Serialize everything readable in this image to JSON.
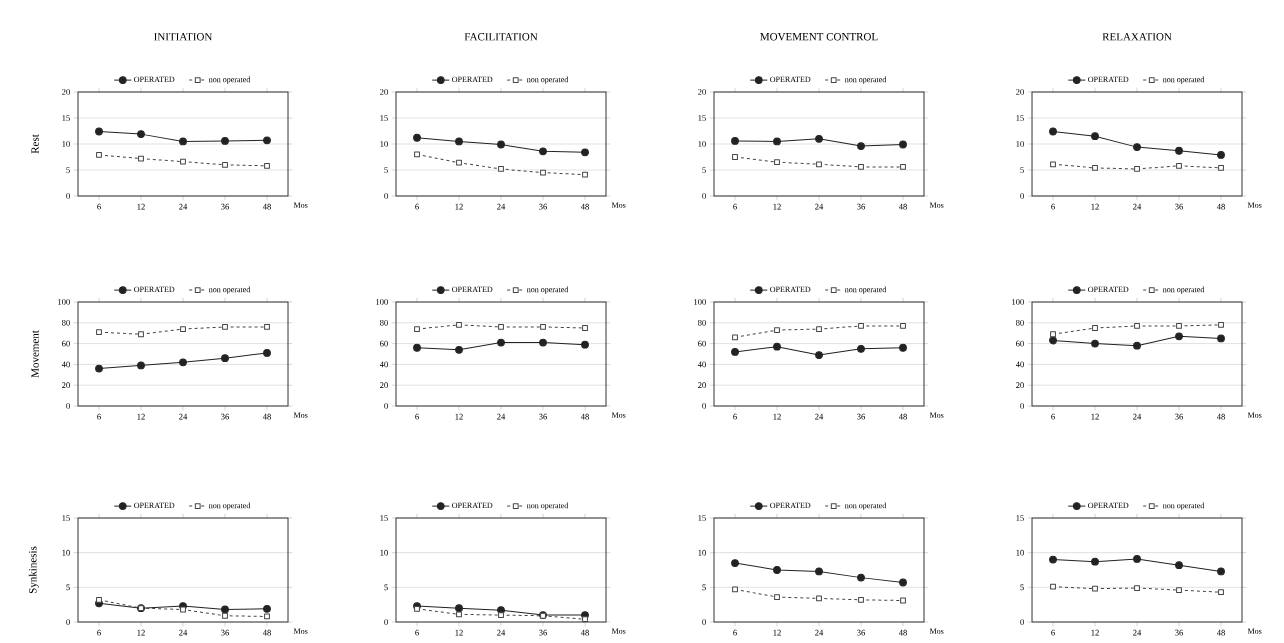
{
  "chart_data": [
    {
      "type": "line",
      "title": "INITIATION",
      "ylabel": "Rest",
      "xlabel": "Mos",
      "categories": [
        "6",
        "12",
        "24",
        "36",
        "48"
      ],
      "ylim": [
        0,
        20
      ],
      "yticks": [
        0,
        5,
        10,
        15,
        20
      ],
      "grid": "y",
      "legend": "top",
      "series": [
        {
          "name": "OPERATED",
          "color": "#222222",
          "marker": "circle",
          "line_style": "solid",
          "values": [
            12.4,
            11.9,
            10.5,
            10.6,
            10.7
          ]
        },
        {
          "name": "non operated",
          "color": "#444444",
          "marker": "square",
          "line_style": "dashed",
          "values": [
            7.9,
            7.2,
            6.6,
            6.0,
            5.8
          ]
        }
      ]
    },
    {
      "type": "line",
      "title": "FACILITATION",
      "xlabel": "Mos",
      "categories": [
        "6",
        "12",
        "24",
        "36",
        "48"
      ],
      "ylim": [
        0,
        20
      ],
      "yticks": [
        0,
        5,
        10,
        15,
        20
      ],
      "grid": "y",
      "legend": "top",
      "series": [
        {
          "name": "OPERATED",
          "color": "#222222",
          "marker": "circle",
          "line_style": "solid",
          "values": [
            11.2,
            10.5,
            9.9,
            8.6,
            8.4
          ]
        },
        {
          "name": "non operated",
          "color": "#444444",
          "marker": "square",
          "line_style": "dashed",
          "values": [
            8.0,
            6.4,
            5.2,
            4.5,
            4.1
          ]
        }
      ]
    },
    {
      "type": "line",
      "title": "MOVEMENT CONTROL",
      "xlabel": "Mos",
      "categories": [
        "6",
        "12",
        "24",
        "36",
        "48"
      ],
      "ylim": [
        0,
        20
      ],
      "yticks": [
        0,
        5,
        10,
        15,
        20
      ],
      "grid": "y",
      "legend": "top",
      "series": [
        {
          "name": "OPERATED",
          "color": "#222222",
          "marker": "circle",
          "line_style": "solid",
          "values": [
            10.6,
            10.5,
            11.0,
            9.6,
            9.9
          ]
        },
        {
          "name": "non operated",
          "color": "#444444",
          "marker": "square",
          "line_style": "dashed",
          "values": [
            7.5,
            6.5,
            6.1,
            5.6,
            5.6
          ]
        }
      ]
    },
    {
      "type": "line",
      "title": "RELAXATION",
      "xlabel": "Mos",
      "categories": [
        "6",
        "12",
        "24",
        "36",
        "48"
      ],
      "ylim": [
        0,
        20
      ],
      "yticks": [
        0,
        5,
        10,
        15,
        20
      ],
      "grid": "y",
      "legend": "top",
      "series": [
        {
          "name": "OPERATED",
          "color": "#222222",
          "marker": "circle",
          "line_style": "solid",
          "values": [
            12.4,
            11.5,
            9.4,
            8.7,
            7.9
          ]
        },
        {
          "name": "non operated",
          "color": "#444444",
          "marker": "square",
          "line_style": "dashed",
          "values": [
            6.1,
            5.4,
            5.2,
            5.8,
            5.4
          ]
        }
      ]
    },
    {
      "type": "line",
      "ylabel": "Movement",
      "xlabel": "Mos",
      "categories": [
        "6",
        "12",
        "24",
        "36",
        "48"
      ],
      "ylim": [
        0,
        100
      ],
      "yticks": [
        0,
        20,
        40,
        60,
        80,
        100
      ],
      "grid": "y",
      "legend": "top",
      "series": [
        {
          "name": "OPERATED",
          "color": "#222222",
          "marker": "circle",
          "line_style": "solid",
          "values": [
            36,
            39,
            42,
            46,
            51
          ]
        },
        {
          "name": "non operated",
          "color": "#444444",
          "marker": "square",
          "line_style": "dashed",
          "values": [
            71,
            69,
            74,
            76,
            76
          ]
        }
      ]
    },
    {
      "type": "line",
      "xlabel": "Mos",
      "categories": [
        "6",
        "12",
        "24",
        "36",
        "48"
      ],
      "ylim": [
        0,
        100
      ],
      "yticks": [
        0,
        20,
        40,
        60,
        80,
        100
      ],
      "grid": "y",
      "legend": "top",
      "series": [
        {
          "name": "OPERATED",
          "color": "#222222",
          "marker": "circle",
          "line_style": "solid",
          "values": [
            56,
            54,
            61,
            61,
            59
          ]
        },
        {
          "name": "non operated",
          "color": "#444444",
          "marker": "square",
          "line_style": "dashed",
          "values": [
            74,
            78,
            76,
            76,
            75
          ]
        }
      ]
    },
    {
      "type": "line",
      "xlabel": "Mos",
      "categories": [
        "6",
        "12",
        "24",
        "36",
        "48"
      ],
      "ylim": [
        0,
        100
      ],
      "yticks": [
        0,
        20,
        40,
        60,
        80,
        100
      ],
      "grid": "y",
      "legend": "top",
      "series": [
        {
          "name": "OPERATED",
          "color": "#222222",
          "marker": "circle",
          "line_style": "solid",
          "values": [
            52,
            57,
            49,
            55,
            56
          ]
        },
        {
          "name": "non operated",
          "color": "#444444",
          "marker": "square",
          "line_style": "dashed",
          "values": [
            66,
            73,
            74,
            77,
            77
          ]
        }
      ]
    },
    {
      "type": "line",
      "xlabel": "Mos",
      "categories": [
        "6",
        "12",
        "24",
        "36",
        "48"
      ],
      "ylim": [
        0,
        100
      ],
      "yticks": [
        0,
        20,
        40,
        60,
        80,
        100
      ],
      "grid": "y",
      "legend": "top",
      "series": [
        {
          "name": "OPERATED",
          "color": "#222222",
          "marker": "circle",
          "line_style": "solid",
          "values": [
            63,
            60,
            58,
            67,
            65
          ]
        },
        {
          "name": "non operated",
          "color": "#444444",
          "marker": "square",
          "line_style": "dashed",
          "values": [
            69,
            75,
            77,
            77,
            78
          ]
        }
      ]
    },
    {
      "type": "line",
      "ylabel": "Synkinesis",
      "xlabel": "Mos",
      "categories": [
        "6",
        "12",
        "24",
        "36",
        "48"
      ],
      "ylim": [
        0,
        15
      ],
      "yticks": [
        0,
        5,
        10,
        15
      ],
      "grid": "y",
      "legend": "top",
      "series": [
        {
          "name": "OPERATED",
          "color": "#222222",
          "marker": "circle",
          "line_style": "solid",
          "values": [
            2.7,
            2.0,
            2.3,
            1.8,
            1.9
          ]
        },
        {
          "name": "non operated",
          "color": "#444444",
          "marker": "square",
          "line_style": "dashed",
          "values": [
            3.2,
            2.0,
            1.8,
            0.9,
            0.8
          ]
        }
      ]
    },
    {
      "type": "line",
      "xlabel": "Mos",
      "categories": [
        "6",
        "12",
        "24",
        "36",
        "48"
      ],
      "ylim": [
        0,
        15
      ],
      "yticks": [
        0,
        5,
        10,
        15
      ],
      "grid": "y",
      "legend": "top",
      "series": [
        {
          "name": "OPERATED",
          "color": "#222222",
          "marker": "circle",
          "line_style": "solid",
          "values": [
            2.3,
            2.0,
            1.7,
            1.0,
            1.0
          ]
        },
        {
          "name": "non operated",
          "color": "#444444",
          "marker": "square",
          "line_style": "dashed",
          "values": [
            1.9,
            1.1,
            1.0,
            0.9,
            0.4
          ]
        }
      ]
    },
    {
      "type": "line",
      "xlabel": "Mos",
      "categories": [
        "6",
        "12",
        "24",
        "36",
        "48"
      ],
      "ylim": [
        0,
        15
      ],
      "yticks": [
        0,
        5,
        10,
        15
      ],
      "grid": "y",
      "legend": "top",
      "series": [
        {
          "name": "OPERATED",
          "color": "#222222",
          "marker": "circle",
          "line_style": "solid",
          "values": [
            8.5,
            7.5,
            7.3,
            6.4,
            5.7
          ]
        },
        {
          "name": "non operated",
          "color": "#444444",
          "marker": "square",
          "line_style": "dashed",
          "values": [
            4.7,
            3.6,
            3.4,
            3.2,
            3.1
          ]
        }
      ]
    },
    {
      "type": "line",
      "xlabel": "Mos",
      "categories": [
        "6",
        "12",
        "24",
        "36",
        "48"
      ],
      "ylim": [
        0,
        15
      ],
      "yticks": [
        0,
        5,
        10,
        15
      ],
      "grid": "y",
      "legend": "top",
      "series": [
        {
          "name": "OPERATED",
          "color": "#222222",
          "marker": "circle",
          "line_style": "solid",
          "values": [
            9.0,
            8.7,
            9.1,
            8.2,
            7.3
          ]
        },
        {
          "name": "non operated",
          "color": "#444444",
          "marker": "square",
          "line_style": "dashed",
          "values": [
            5.1,
            4.8,
            4.9,
            4.6,
            4.3
          ]
        }
      ]
    }
  ]
}
